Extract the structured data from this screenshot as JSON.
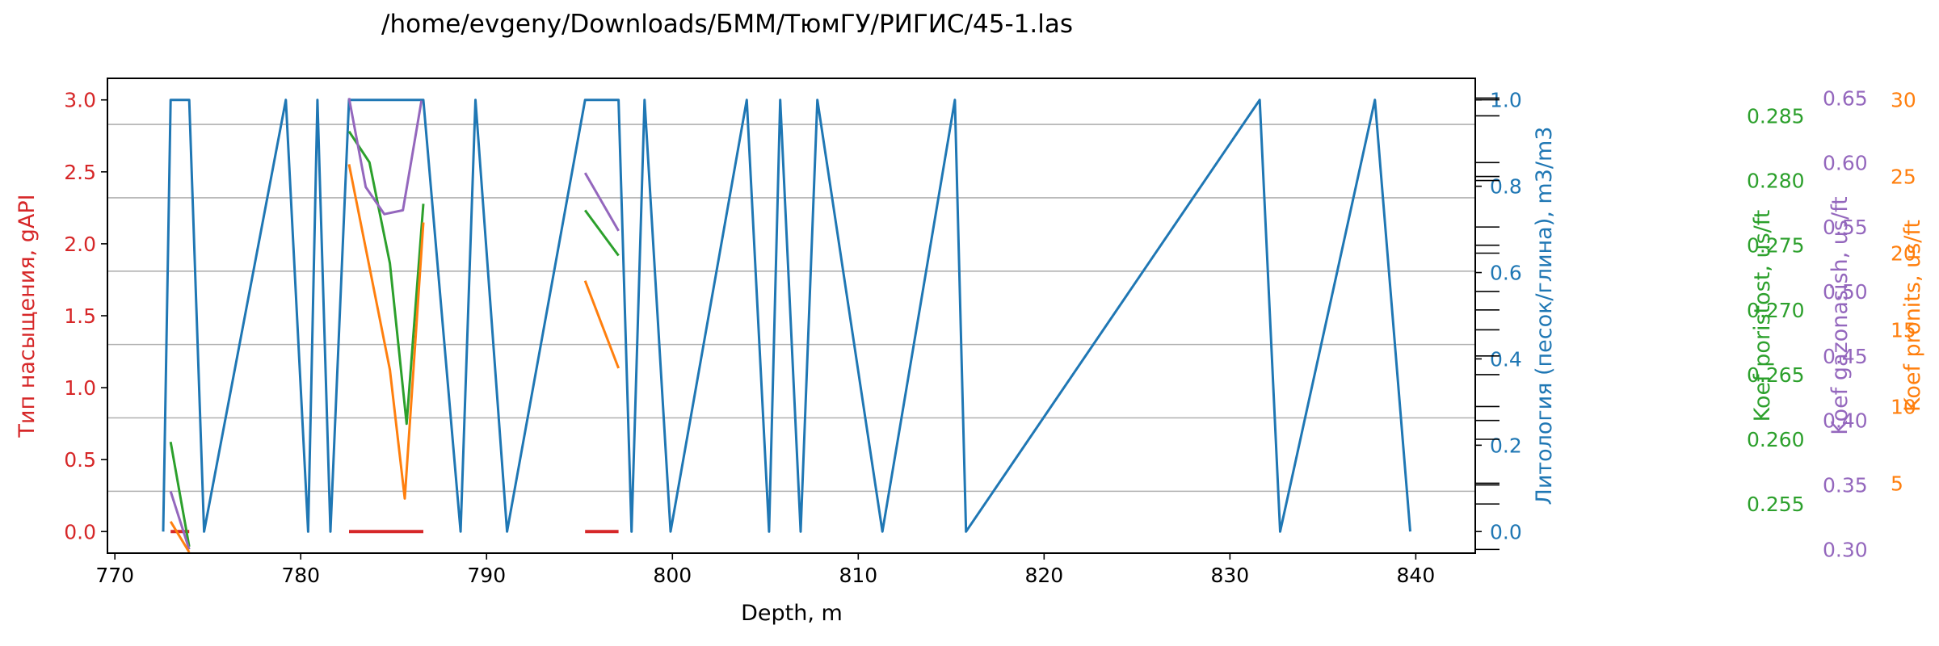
{
  "chart_data": {
    "type": "line",
    "title": "/home/evgeny/Downloads/БММ/ТюмГУ/РИГИС/45-1.las",
    "xlabel": "Depth, m",
    "xlim": [
      769.6,
      843.2
    ],
    "xticks": [
      770,
      780,
      790,
      800,
      810,
      820,
      830,
      840
    ],
    "grid": true,
    "colors": {
      "saturation": "#d62728",
      "lithology": "#1f77b4",
      "porosity": "#2ca02c",
      "gas": "#9467bd",
      "permeability": "#ff7f0e",
      "grid": "#b0b0b0"
    },
    "axes": [
      {
        "id": "saturation",
        "label": "Тип насыщения, gAPI",
        "ylim": [
          -0.15,
          3.15
        ],
        "ticks": [
          "0.0",
          "0.5",
          "1.0",
          "1.5",
          "2.0",
          "2.5",
          "3.0"
        ],
        "tick_values": [
          0,
          0.5,
          1.0,
          1.5,
          2.0,
          2.5,
          3.0
        ]
      },
      {
        "id": "lithology",
        "label": "Литология (песок/глина), m3/m3",
        "ylim": [
          -0.05,
          1.05
        ],
        "ticks": [
          "0.0",
          "0.2",
          "0.4",
          "0.6",
          "0.8",
          "1.0"
        ],
        "tick_values": [
          0,
          0.2,
          0.4,
          0.6,
          0.8,
          1.0
        ]
      },
      {
        "id": "porosity",
        "label": "Koef poristost, us/ft",
        "ylim": [
          0.2512,
          0.2879
        ],
        "ticks": [
          "0.255",
          "0.260",
          "0.265",
          "0.270",
          "0.275",
          "0.280",
          "0.285"
        ],
        "tick_values": [
          0.255,
          0.26,
          0.265,
          0.27,
          0.275,
          0.28,
          0.285
        ]
      },
      {
        "id": "gas",
        "label": "Koef gazonasish, us/ft",
        "ylim": [
          0.2971,
          0.6653
        ],
        "ticks": [
          "0.30",
          "0.35",
          "0.40",
          "0.45",
          "0.50",
          "0.55",
          "0.60",
          "0.65"
        ],
        "tick_values": [
          0.3,
          0.35,
          0.4,
          0.45,
          0.5,
          0.55,
          0.6,
          0.65
        ]
      },
      {
        "id": "permeability",
        "label": "Koef pronits, us/ft",
        "ylim": [
          0.44,
          31.4
        ],
        "ticks": [
          "5",
          "10",
          "15",
          "20",
          "25",
          "30"
        ],
        "tick_values": [
          5,
          10,
          15,
          20,
          25,
          30
        ]
      }
    ],
    "series": [
      {
        "axis": "lithology",
        "segments": [
          [
            [
              772.6,
              0
            ],
            [
              773.0,
              1.0
            ],
            [
              774.0,
              1.0
            ],
            [
              774.8,
              0
            ],
            [
              779.2,
              1.0
            ],
            [
              780.4,
              0
            ],
            [
              780.9,
              1.0
            ],
            [
              781.6,
              0
            ],
            [
              782.6,
              1.0
            ],
            [
              786.6,
              1.0
            ],
            [
              788.6,
              0
            ],
            [
              789.4,
              1.0
            ],
            [
              791.1,
              0
            ],
            [
              795.3,
              1.0
            ],
            [
              797.1,
              1.0
            ],
            [
              797.8,
              0
            ],
            [
              798.5,
              1.0
            ],
            [
              799.9,
              0
            ],
            [
              804.0,
              1.0
            ],
            [
              805.2,
              0
            ],
            [
              805.8,
              1.0
            ],
            [
              806.9,
              0
            ],
            [
              807.8,
              1.0
            ],
            [
              811.3,
              0
            ],
            [
              815.2,
              1.0
            ],
            [
              815.8,
              0
            ],
            [
              831.6,
              1.0
            ],
            [
              832.7,
              0
            ],
            [
              837.8,
              1.0
            ],
            [
              839.7,
              0
            ]
          ]
        ]
      },
      {
        "axis": "saturation",
        "segments": [
          [
            [
              773.0,
              0
            ],
            [
              774.0,
              0
            ]
          ],
          [
            [
              782.6,
              0
            ],
            [
              786.6,
              0
            ]
          ],
          [
            [
              795.3,
              0
            ],
            [
              797.1,
              0
            ]
          ]
        ]
      },
      {
        "axis": "porosity",
        "segments": [
          [
            [
              773.0,
              0.2598
            ],
            [
              774.0,
              0.2517
            ]
          ],
          [
            [
              782.6,
              0.2838
            ],
            [
              783.7,
              0.2814
            ],
            [
              784.8,
              0.2736
            ],
            [
              785.7,
              0.2612
            ],
            [
              786.6,
              0.2782
            ]
          ],
          [
            [
              795.3,
              0.2777
            ],
            [
              797.1,
              0.2742
            ]
          ]
        ]
      },
      {
        "axis": "gas",
        "segments": [
          [
            [
              773.0,
              0.345
            ],
            [
              774.0,
              0.3
            ]
          ],
          [
            [
              782.6,
              0.65
            ],
            [
              783.5,
              0.581
            ],
            [
              784.5,
              0.56
            ],
            [
              785.5,
              0.563
            ],
            [
              786.5,
              0.648
            ]
          ],
          [
            [
              795.3,
              0.592
            ],
            [
              797.1,
              0.547
            ]
          ]
        ]
      },
      {
        "axis": "permeability",
        "segments": [
          [
            [
              773.0,
              2.5
            ],
            [
              774.0,
              0.5
            ]
          ],
          [
            [
              782.6,
              25.8
            ],
            [
              784.8,
              12.4
            ],
            [
              785.6,
              4.0
            ],
            [
              786.6,
              22.0
            ]
          ],
          [
            [
              795.3,
              18.2
            ],
            [
              797.1,
              12.5
            ]
          ]
        ]
      }
    ]
  }
}
